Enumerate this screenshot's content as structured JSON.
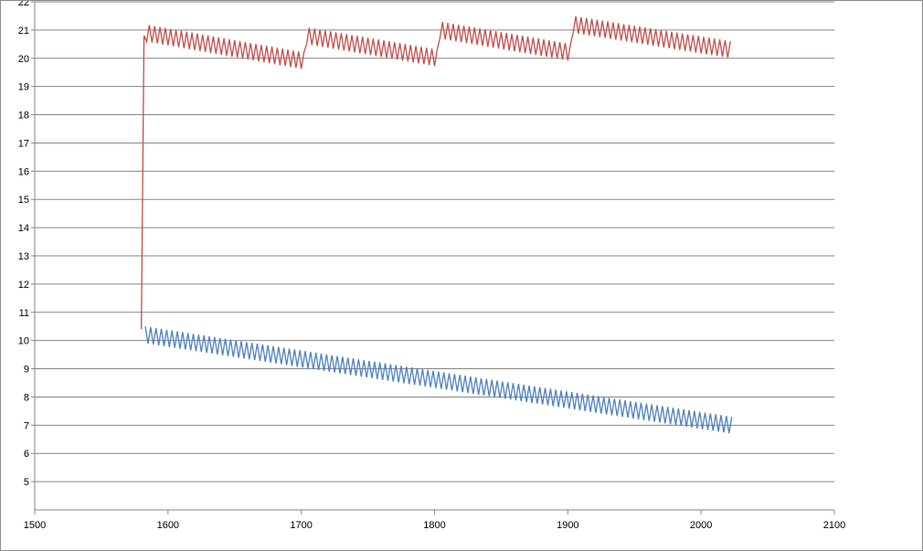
{
  "chart_data": {
    "type": "line",
    "title": "",
    "xlabel": "",
    "ylabel": "",
    "xlim": [
      1500,
      2100
    ],
    "ylim": [
      4,
      22
    ],
    "x_ticks": [
      1500,
      1600,
      1700,
      1800,
      1900,
      2000,
      2100
    ],
    "y_ticks": [
      5,
      6,
      7,
      8,
      9,
      10,
      11,
      12,
      13,
      14,
      15,
      16,
      17,
      18,
      19,
      20,
      21,
      22
    ],
    "grid": "horizontal",
    "legend": "none",
    "series": [
      {
        "color": "#C0504D",
        "x": [
          1580,
          1582,
          1583,
          1703,
          1704,
          1803,
          1804,
          1903,
          1904,
          2023
        ],
        "y": [
          10.4,
          20.5,
          20.9,
          19.9,
          20.8,
          20.0,
          21.0,
          20.2,
          21.2,
          20.3
        ],
        "oscillation_amplitude": 0.3,
        "oscillation_period": 4
      },
      {
        "color": "#4F81BD",
        "x": [
          1583,
          2023
        ],
        "y": [
          10.2,
          7.0
        ],
        "oscillation_amplitude": 0.3,
        "oscillation_period": 4
      }
    ]
  }
}
